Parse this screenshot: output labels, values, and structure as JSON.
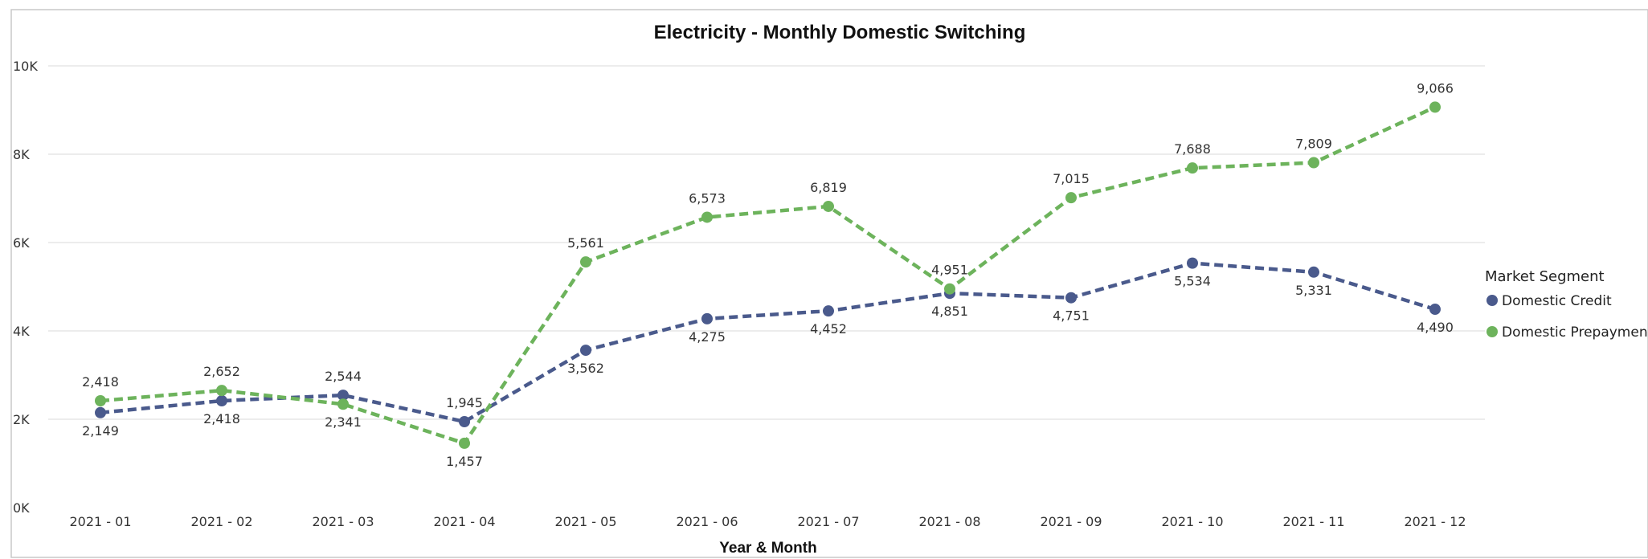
{
  "chart_data": {
    "type": "line",
    "title": "Electricity - Monthly Domestic Switching",
    "xlabel": "Year & Month",
    "ylabel": "",
    "ylim": [
      0,
      10000
    ],
    "yticks": [
      {
        "value": 0,
        "label": "0K"
      },
      {
        "value": 2000,
        "label": "2K"
      },
      {
        "value": 4000,
        "label": "4K"
      },
      {
        "value": 6000,
        "label": "6K"
      },
      {
        "value": 8000,
        "label": "8K"
      },
      {
        "value": 10000,
        "label": "10K"
      }
    ],
    "grid": true,
    "legend_position": "right",
    "legend_title": "Market Segment",
    "categories": [
      "2021 - 01",
      "2021 - 02",
      "2021 - 03",
      "2021 - 04",
      "2021 - 05",
      "2021 - 06",
      "2021 - 07",
      "2021 - 08",
      "2021 - 09",
      "2021 - 10",
      "2021 - 11",
      "2021 - 12"
    ],
    "series": [
      {
        "name": "Domestic Credit",
        "color": "#4a5a8c",
        "values": [
          2149,
          2418,
          2544,
          1945,
          3562,
          4275,
          4452,
          4851,
          4751,
          5534,
          5331,
          4490
        ],
        "labels": [
          "2,149",
          "2,418",
          "2,544",
          "1,945",
          "3,562",
          "4,275",
          "4,452",
          "4,851",
          "4,751",
          "5,534",
          "5,331",
          "4,490"
        ]
      },
      {
        "name": "Domestic Prepayment",
        "color": "#6db35c",
        "values": [
          2418,
          2652,
          2341,
          1457,
          5561,
          6573,
          6819,
          4951,
          7015,
          7688,
          7809,
          9066
        ],
        "labels": [
          "2,418",
          "2,652",
          "2,341",
          "1,457",
          "5,561",
          "6,573",
          "6,819",
          "4,951",
          "7,015",
          "7,688",
          "7,809",
          "9,066"
        ]
      }
    ]
  }
}
